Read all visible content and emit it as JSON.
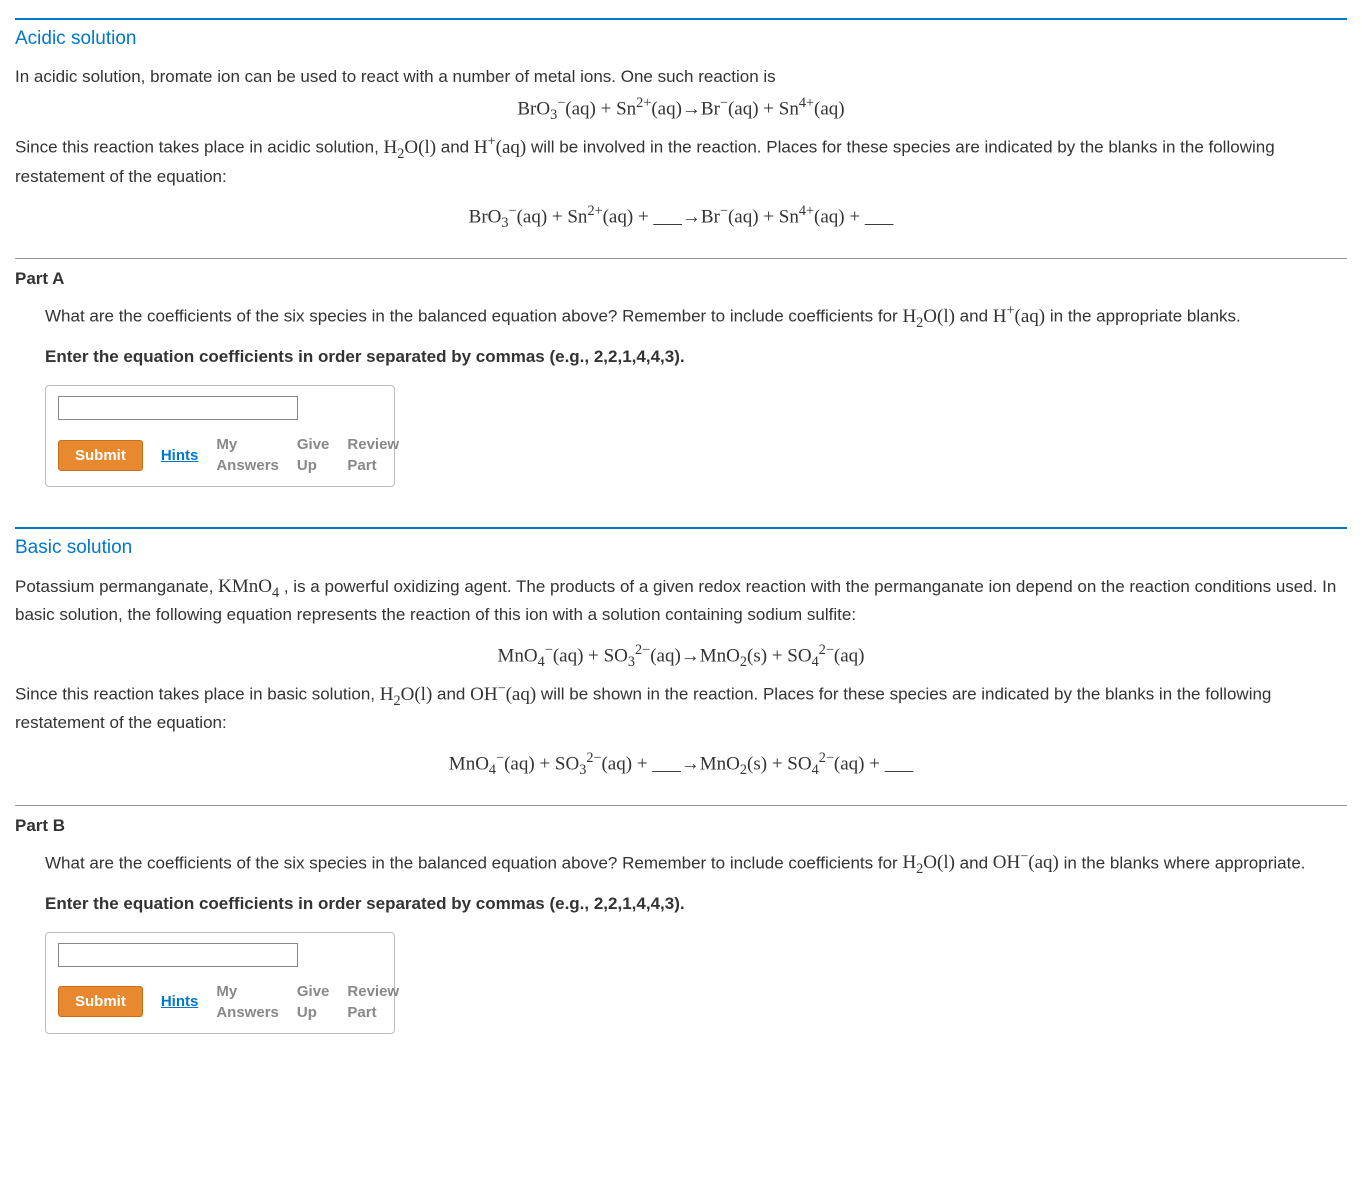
{
  "colors": {
    "accent_blue": "#0077cc",
    "submit_bg": "#e8892f",
    "submit_border": "#c56f1b",
    "divider_grey": "#999999",
    "grey_text": "#888888",
    "body_text": "#333333"
  },
  "acidic": {
    "heading": "Acidic solution",
    "intro_plain": "In acidic solution, bromate ion can be used to react with a number of metal ions. One such reaction is",
    "equation1_html": "BrO<span class='subsc'>3</span><span class='super'>−</span>(aq) + Sn<span class='super'>2+</span>(aq)→Br<span class='super'>−</span>(aq) + Sn<span class='super'>4+</span>(aq)",
    "since_pre": "Since this reaction takes place in acidic solution, ",
    "since_chem1": "H<span class='subsc'>2</span>O(l)",
    "since_mid": " and ",
    "since_chem2": "H<span class='super'>+</span>(aq)",
    "since_post": " will be involved in the reaction. Places for these species are indicated by the blanks in the following restatement of the equation:",
    "equation2_html": "BrO<span class='subsc'>3</span><span class='super'>−</span>(aq) + Sn<span class='super'>2+</span>(aq) + ___→Br<span class='super'>−</span>(aq) + Sn<span class='super'>4+</span>(aq) + ___"
  },
  "partA": {
    "label": "Part A",
    "question_pre": "What are the coefficients of the six species in the balanced equation above? Remember to include coefficients for ",
    "question_chem1": "H<span class='subsc'>2</span>O(l)",
    "question_mid": " and ",
    "question_chem2": "H<span class='super'>+</span>(aq)",
    "question_post": " in the appropriate blanks.",
    "prompt": "Enter the equation coefficients in order separated by commas (e.g., 2,2,1,4,4,3).",
    "input_value": "",
    "buttons": {
      "submit": "Submit",
      "hints": "Hints",
      "my_answers": "My Answers",
      "give_up": "Give Up",
      "review": "Review Part"
    }
  },
  "basic": {
    "heading": "Basic solution",
    "intro_pre": "Potassium permanganate, ",
    "intro_chem": "KMnO<span class='subsc'>4</span>",
    "intro_post": " , is a powerful oxidizing agent. The products of a given redox reaction with the permanganate ion depend on the reaction conditions used. In basic solution, the following equation represents the reaction of this ion with a solution containing sodium sulfite:",
    "equation1_html": "MnO<span class='subsc'>4</span><span class='super'>−</span>(aq) + SO<span class='subsc'>3</span><span class='super'>2−</span>(aq)→MnO<span class='subsc'>2</span>(s) + SO<span class='subsc'>4</span><span class='super'>2−</span>(aq)",
    "since_pre": "Since this reaction takes place in basic solution, ",
    "since_chem1": "H<span class='subsc'>2</span>O(l)",
    "since_mid": " and ",
    "since_chem2": "OH<span class='super'>−</span>(aq)",
    "since_post": " will be shown in the reaction. Places for these species are indicated by the blanks in the following restatement of the equation:",
    "equation2_html": "MnO<span class='subsc'>4</span><span class='super'>−</span>(aq) + SO<span class='subsc'>3</span><span class='super'>2−</span>(aq) + ___→MnO<span class='subsc'>2</span>(s) + SO<span class='subsc'>4</span><span class='super'>2−</span>(aq) + ___"
  },
  "partB": {
    "label": "Part B",
    "question_pre": "What are the coefficients of the six species in the balanced equation above? Remember to include coefficients for ",
    "question_chem1": "H<span class='subsc'>2</span>O(l)",
    "question_mid": " and ",
    "question_chem2": "OH<span class='super'>−</span>(aq)",
    "question_post": " in the blanks where appropriate.",
    "prompt": "Enter the equation coefficients in order separated by commas (e.g., 2,2,1,4,4,3).",
    "input_value": "",
    "buttons": {
      "submit": "Submit",
      "hints": "Hints",
      "my_answers": "My Answers",
      "give_up": "Give Up",
      "review": "Review Part"
    }
  }
}
